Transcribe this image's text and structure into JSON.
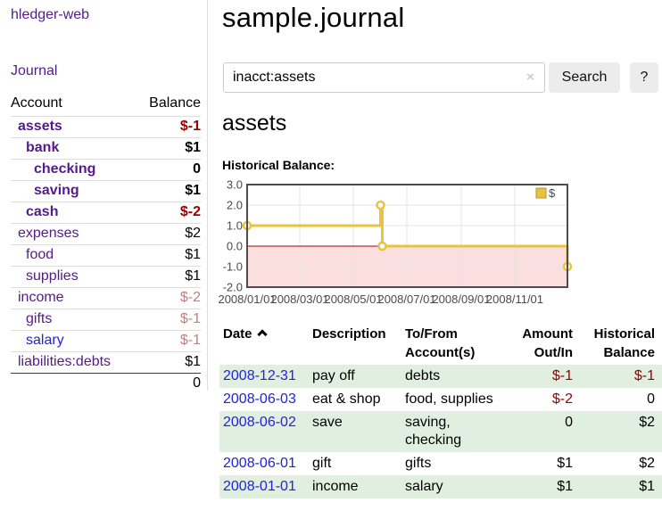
{
  "app": {
    "brand": "hledger-web"
  },
  "sidebar": {
    "journal_link": "Journal",
    "accounts": {
      "header": {
        "account": "Account",
        "balance": "Balance"
      },
      "rows": [
        {
          "name": "assets",
          "balance": "$-1",
          "depth": 1,
          "matched": true,
          "neg": "strong",
          "link": "visited"
        },
        {
          "name": "bank",
          "balance": "$1",
          "depth": 2,
          "matched": true,
          "neg": "none",
          "link": "visited"
        },
        {
          "name": "checking",
          "balance": "0",
          "depth": 3,
          "matched": true,
          "neg": "none",
          "link": "visited"
        },
        {
          "name": "saving",
          "balance": "$1",
          "depth": 3,
          "matched": true,
          "neg": "none",
          "link": "visited"
        },
        {
          "name": "cash",
          "balance": "$-2",
          "depth": 2,
          "matched": true,
          "neg": "strong",
          "link": "visited"
        },
        {
          "name": "expenses",
          "balance": "$2",
          "depth": 1,
          "matched": false,
          "neg": "none",
          "link": "visited"
        },
        {
          "name": "food",
          "balance": "$1",
          "depth": 2,
          "matched": false,
          "neg": "none",
          "link": "visited"
        },
        {
          "name": "supplies",
          "balance": "$1",
          "depth": 2,
          "matched": false,
          "neg": "none",
          "link": "visited"
        },
        {
          "name": "income",
          "balance": "$-2",
          "depth": 1,
          "matched": false,
          "neg": "dim",
          "link": "visited"
        },
        {
          "name": "gifts",
          "balance": "$-1",
          "depth": 2,
          "matched": false,
          "neg": "dim",
          "link": "visited"
        },
        {
          "name": "salary",
          "balance": "$-1",
          "depth": 2,
          "matched": false,
          "neg": "dim",
          "link": "unvisited"
        },
        {
          "name": "liabilities:debts",
          "balance": "$1",
          "depth": 1,
          "matched": false,
          "neg": "none",
          "link": "visited"
        }
      ],
      "total": "0"
    }
  },
  "main": {
    "title": "sample.journal",
    "search": {
      "value": "inacct:assets",
      "clear_icon": "×",
      "search_button": "Search",
      "help_button": "?"
    },
    "account_heading": "assets",
    "register": {
      "headers": {
        "date": "Date",
        "description": "Description",
        "account": "To/From Account(s)",
        "amount": "Amount Out/In",
        "balance": "Historical Balance"
      },
      "rows": [
        {
          "date": "2008-12-31",
          "description": "pay off",
          "account": "debts",
          "amount": "$-1",
          "balance": "$-1"
        },
        {
          "date": "2008-06-03",
          "description": "eat & shop",
          "account": "food, supplies",
          "amount": "$-2",
          "balance": "0"
        },
        {
          "date": "2008-06-02",
          "description": "save",
          "account": "saving,\nchecking",
          "amount": "0",
          "balance": "$2"
        },
        {
          "date": "2008-06-01",
          "description": "gift",
          "account": "gifts",
          "amount": "$1",
          "balance": "$2"
        },
        {
          "date": "2008-01-01",
          "description": "income",
          "account": "salary",
          "amount": "$1",
          "balance": "$1"
        }
      ]
    }
  },
  "chart_data": {
    "type": "line",
    "step": true,
    "title": "Historical Balance:",
    "series": [
      {
        "name": "$",
        "color": "#e9c23f",
        "points": [
          [
            "2008-01-01",
            1
          ],
          [
            "2008-06-01",
            2
          ],
          [
            "2008-06-03",
            0
          ],
          [
            "2008-12-31",
            -1
          ]
        ]
      }
    ],
    "xlim": [
      "2008-01-01",
      "2008-12-31"
    ],
    "ylim": [
      -2,
      3
    ],
    "y_ticks": [
      3,
      2,
      1,
      0,
      -1,
      -2
    ],
    "x_ticks": [
      [
        "2008-01-01",
        "2008/01/01"
      ],
      [
        "2008-03-01",
        "2008/03/01"
      ],
      [
        "2008-05-01",
        "2008/05/01"
      ],
      [
        "2008-07-01",
        "2008/07/01"
      ],
      [
        "2008-09-01",
        "2008/09/01"
      ],
      [
        "2008-11-01",
        "2008/11/01"
      ]
    ],
    "grid": true,
    "legend_position": "top-right",
    "colors": {
      "negative_region": "#fbdfdf",
      "zero_line": "#a40000",
      "grid_border": "#4d4d4d",
      "gridline": "#e4e4e4",
      "legend_box_border": "#b8962e"
    }
  },
  "colors": {
    "visited_link": "#551a8b",
    "new_link": "#2222dd",
    "negative_strong": "#990000",
    "negative_dim": "#c08080",
    "row_stripe_green": "#e1efe1"
  }
}
